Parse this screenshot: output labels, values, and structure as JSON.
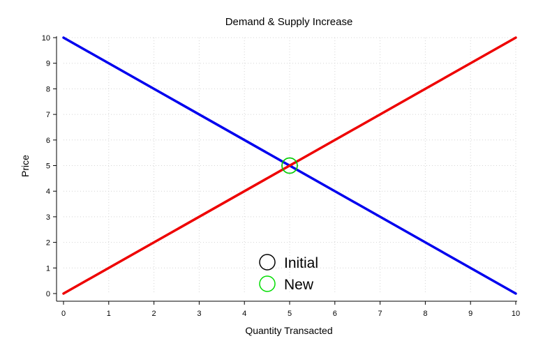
{
  "chart_data": {
    "type": "line",
    "title": "Demand & Supply Increase",
    "xlabel": "Quantity Transacted",
    "ylabel": "Price",
    "xlim": [
      0,
      10
    ],
    "ylim": [
      0,
      10
    ],
    "x_ticks": [
      0,
      1,
      2,
      3,
      4,
      5,
      6,
      7,
      8,
      9,
      10
    ],
    "y_ticks": [
      0,
      1,
      2,
      3,
      4,
      5,
      6,
      7,
      8,
      9,
      10
    ],
    "grid": true,
    "series": [
      {
        "color": "#0000ee",
        "x": [
          0,
          10
        ],
        "y": [
          10,
          0
        ]
      },
      {
        "color": "#ee0000",
        "x": [
          0,
          10
        ],
        "y": [
          0,
          10
        ]
      }
    ],
    "markers": [
      {
        "name": "Initial",
        "color": "#000000",
        "x": 5,
        "y": 5
      },
      {
        "name": "New",
        "color": "#00dd00",
        "x": 5,
        "y": 5
      }
    ],
    "legend": {
      "placement": "bottom-center",
      "entries": [
        {
          "label": "Initial",
          "color": "#000000"
        },
        {
          "label": "New",
          "color": "#00dd00"
        }
      ]
    }
  }
}
